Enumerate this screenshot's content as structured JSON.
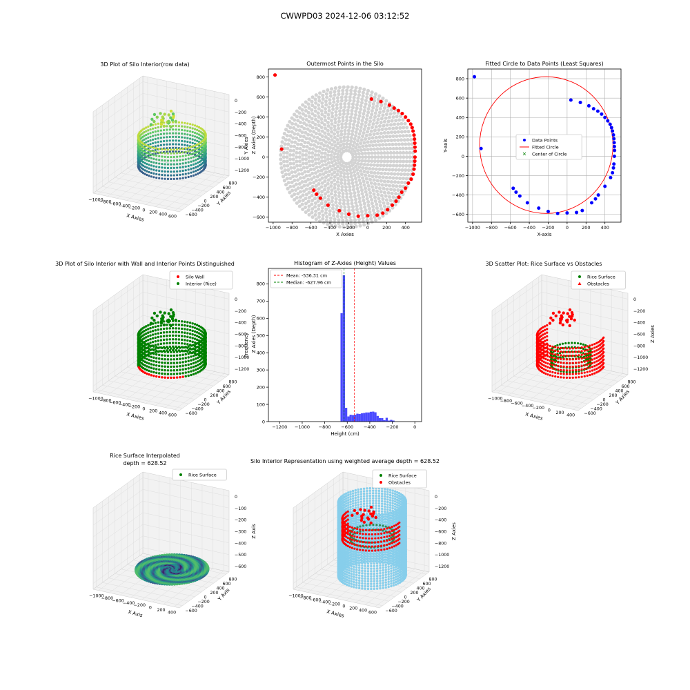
{
  "figure": {
    "suptitle": "CWWPD03 2024-12-06 03:12:52"
  },
  "colors": {
    "red": "#ff0000",
    "green": "#008000",
    "blue": "#0000ff",
    "gray": "#d3d3d3",
    "hist": "#4b4bff",
    "sky": "#87ceeb",
    "grid": "#b0b0b0"
  },
  "chart_data": [
    {
      "id": "plot1",
      "type": "scatter",
      "title": "3D Plot of Silo Interior(row data)",
      "xlabel": "X Axies",
      "ylabel": "Y Axies",
      "zlabel": "Z Axies (Depth)",
      "xticks": [
        "−1000",
        "−800",
        "−600",
        "−400",
        "−200",
        "0",
        "200",
        "400",
        "600"
      ],
      "yticks": [
        "−600",
        "−400",
        "−200",
        "0",
        "200",
        "400",
        "600",
        "800"
      ],
      "zticks": [
        "0",
        "−200",
        "−400",
        "−600",
        "−800",
        "−1000",
        "−1200"
      ],
      "colormap": "viridis"
    },
    {
      "id": "plot2",
      "type": "scatter",
      "title": "Outermost Points in the Silo",
      "xlabel": "X Axies",
      "ylabel": "Y Axies",
      "xlim": [
        -1050,
        570
      ],
      "ylim": [
        -650,
        880
      ],
      "xticks": [
        "−1000",
        "−800",
        "−600",
        "−400",
        "−200",
        "0",
        "200",
        "400"
      ],
      "xtick_values": [
        -1000,
        -800,
        -600,
        -400,
        -200,
        0,
        200,
        400
      ],
      "yticks": [
        "−600",
        "−400",
        "−200",
        "0",
        "200",
        "400",
        "600",
        "800"
      ],
      "ytick_values": [
        -600,
        -400,
        -200,
        0,
        200,
        400,
        600,
        800
      ],
      "grid_points": {
        "center": [
          -220,
          0
        ],
        "max_radius": 700,
        "rings": 21,
        "color": "#d3d3d3"
      },
      "outer_points": [
        [
          -980,
          820
        ],
        [
          -910,
          80
        ],
        [
          40,
          580
        ],
        [
          140,
          555
        ],
        [
          230,
          520
        ],
        [
          280,
          490
        ],
        [
          325,
          465
        ],
        [
          365,
          435
        ],
        [
          400,
          400
        ],
        [
          430,
          365
        ],
        [
          455,
          330
        ],
        [
          470,
          295
        ],
        [
          480,
          260
        ],
        [
          490,
          220
        ],
        [
          495,
          180
        ],
        [
          498,
          140
        ],
        [
          500,
          100
        ],
        [
          502,
          60
        ],
        [
          500,
          0
        ],
        [
          498,
          -40
        ],
        [
          495,
          -80
        ],
        [
          490,
          -120
        ],
        [
          480,
          -170
        ],
        [
          460,
          -220
        ],
        [
          430,
          -260
        ],
        [
          400,
          -310
        ],
        [
          360,
          -350
        ],
        [
          330,
          -400
        ],
        [
          300,
          -440
        ],
        [
          260,
          -480
        ],
        [
          210,
          -525
        ],
        [
          160,
          -560
        ],
        [
          100,
          -580
        ],
        [
          0,
          -585
        ],
        [
          -100,
          -590
        ],
        [
          -200,
          -570
        ],
        [
          -300,
          -535
        ],
        [
          -420,
          -480
        ],
        [
          -500,
          -410
        ],
        [
          -540,
          -370
        ],
        [
          -570,
          -330
        ]
      ]
    },
    {
      "id": "plot3",
      "type": "scatter",
      "title": "Fitted Circle to Data Points (Least Squares)",
      "xlabel": "X-axis",
      "ylabel": "Y-axis",
      "xlim": [
        -1050,
        570
      ],
      "ylim": [
        -680,
        900
      ],
      "xticks": [
        "−1000",
        "−800",
        "−600",
        "−400",
        "−200",
        "0",
        "200",
        "400"
      ],
      "xtick_values": [
        -1000,
        -800,
        -600,
        -400,
        -200,
        0,
        200,
        400
      ],
      "yticks": [
        "−600",
        "−400",
        "−200",
        "0",
        "200",
        "400",
        "600",
        "800"
      ],
      "ytick_values": [
        -600,
        -400,
        -200,
        0,
        200,
        400,
        600,
        800
      ],
      "legend": [
        "Data Points",
        "Fitted Circle",
        "Center of Circle"
      ],
      "circle": {
        "cx": -220,
        "cy": 115,
        "r": 705
      },
      "data_points": [
        [
          -980,
          820
        ],
        [
          -910,
          80
        ],
        [
          40,
          580
        ],
        [
          140,
          555
        ],
        [
          230,
          520
        ],
        [
          280,
          490
        ],
        [
          325,
          465
        ],
        [
          365,
          435
        ],
        [
          400,
          400
        ],
        [
          430,
          365
        ],
        [
          455,
          330
        ],
        [
          470,
          295
        ],
        [
          480,
          260
        ],
        [
          490,
          220
        ],
        [
          495,
          180
        ],
        [
          498,
          140
        ],
        [
          500,
          100
        ],
        [
          502,
          60
        ],
        [
          500,
          0
        ],
        [
          495,
          -80
        ],
        [
          490,
          -120
        ],
        [
          480,
          -170
        ],
        [
          460,
          -220
        ],
        [
          400,
          -310
        ],
        [
          330,
          -400
        ],
        [
          300,
          -440
        ],
        [
          260,
          -480
        ],
        [
          160,
          -560
        ],
        [
          100,
          -580
        ],
        [
          0,
          -585
        ],
        [
          -100,
          -590
        ],
        [
          -200,
          -570
        ],
        [
          -300,
          -535
        ],
        [
          -420,
          -480
        ],
        [
          -500,
          -410
        ],
        [
          -540,
          -370
        ],
        [
          -570,
          -330
        ]
      ]
    },
    {
      "id": "plot4",
      "type": "scatter",
      "title": "3D Plot of Silo Interior with Wall and Interior Points Distinguished",
      "xlabel": "X Axies",
      "ylabel": "Y Axies",
      "zlabel": "Z Axies (Depth)",
      "legend": [
        "Silo Wall",
        "Interior (Rice)"
      ],
      "xticks": [
        "−1000",
        "−800",
        "−600",
        "−400",
        "−200",
        "0",
        "200",
        "400",
        "600"
      ],
      "yticks": [
        "−600",
        "−400",
        "−200",
        "0",
        "200",
        "400",
        "600",
        "800"
      ],
      "zticks": [
        "0",
        "−200",
        "−400",
        "−600",
        "−800",
        "−1000",
        "−1200"
      ]
    },
    {
      "id": "plot5",
      "type": "bar",
      "title": "Histogram of Z-Axies (Height) Values",
      "xlabel": "Height (cm)",
      "ylabel": "Frequency",
      "xlim": [
        -1300,
        60
      ],
      "ylim": [
        0,
        890
      ],
      "xticks": [
        "−1200",
        "−1000",
        "−800",
        "−600",
        "−400",
        "−200",
        "0"
      ],
      "xtick_values": [
        -1200,
        -1000,
        -800,
        -600,
        -400,
        -200,
        0
      ],
      "yticks": [
        "0",
        "100",
        "200",
        "300",
        "400",
        "500",
        "600",
        "700",
        "800"
      ],
      "ytick_values": [
        0,
        100,
        200,
        300,
        400,
        500,
        600,
        700,
        800
      ],
      "mean": -536.31,
      "median": -627.96,
      "legend": [
        "Mean: -536.31 cm",
        "Median: -627.96 cm"
      ],
      "bin_start": -660,
      "bin_width": 20,
      "values": [
        630,
        850,
        80,
        30,
        40,
        38,
        40,
        46,
        44,
        48,
        50,
        53,
        53,
        57,
        58,
        54,
        33,
        20,
        20,
        8,
        22,
        6,
        10,
        6
      ]
    },
    {
      "id": "plot6",
      "type": "scatter",
      "title": "3D Scatter Plot: Rice Surface vs Obstacles",
      "xlabel": "X Axies",
      "ylabel": "Y Axies",
      "zlabel": "Z Axies",
      "legend": [
        "Rice Surface",
        "Obstacles"
      ],
      "xticks": [
        "−1000",
        "−800",
        "−600",
        "−400",
        "−200",
        "0",
        "200",
        "400"
      ],
      "yticks": [
        "−600",
        "−400",
        "−200",
        "0",
        "200",
        "400",
        "600",
        "800"
      ],
      "zticks": [
        "0",
        "−200",
        "−400",
        "−600",
        "−800",
        "−1000",
        "−1200"
      ]
    },
    {
      "id": "plot7",
      "type": "area",
      "title": "Rice Surface Interpolated",
      "subtitle": "depth = 628.52",
      "xlabel": "X Axis",
      "ylabel": "Y Axis",
      "zlabel": "Z Axis",
      "legend": [
        "Rice Surface"
      ],
      "xticks": [
        "−1000",
        "−800",
        "−600",
        "−400",
        "−200",
        "0",
        "200",
        "400"
      ],
      "yticks": [
        "−600",
        "−400",
        "−200",
        "0",
        "200",
        "400",
        "600",
        "800"
      ],
      "zticks": [
        "0",
        "−100",
        "−200",
        "−300",
        "−400",
        "−500",
        "−600"
      ]
    },
    {
      "id": "plot8",
      "type": "scatter",
      "title": "Silo Interior Representation using weighted average depth = 628.52",
      "xlabel": "X Axies",
      "ylabel": "Y Axies",
      "zlabel": "Z Axies",
      "legend": [
        "Rice Surface",
        "Obstacles"
      ],
      "xticks": [
        "−1000",
        "−800",
        "−600",
        "−400",
        "−200",
        "0",
        "200",
        "400",
        "600"
      ],
      "yticks": [
        "−600",
        "−400",
        "−200",
        "0",
        "200",
        "400",
        "600",
        "800"
      ],
      "zticks": [
        "0",
        "−200",
        "−400",
        "−600",
        "−800",
        "−1000",
        "−1200"
      ]
    }
  ]
}
